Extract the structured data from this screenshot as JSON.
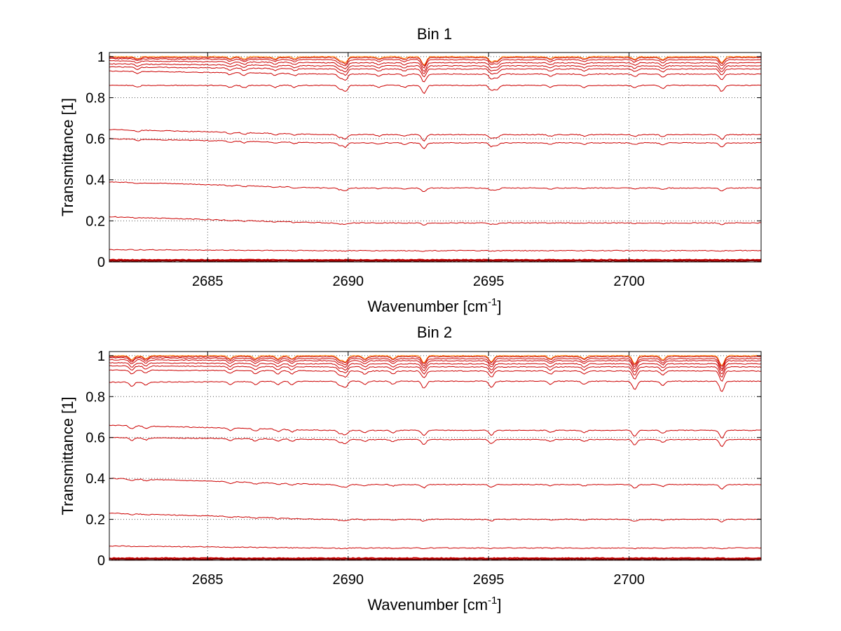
{
  "figure": {
    "background": "#ffffff"
  },
  "chart_data": [
    {
      "type": "line",
      "title": "Bin 1",
      "xlabel_main": "Wavenumber [cm",
      "xlabel_sup": "-1",
      "xlabel_end": "]",
      "ylabel": "Transmittance [1]",
      "xlim": [
        2681.5,
        2704.7
      ],
      "ylim": [
        0,
        1.02
      ],
      "xticks": [
        2685,
        2690,
        2695,
        2700
      ],
      "yticks": [
        0,
        0.2,
        0.4,
        0.6,
        0.8,
        1
      ],
      "ytick_labels": [
        "0",
        "0.2",
        "0.4",
        "0.6",
        "0.8",
        "1"
      ],
      "grid": true,
      "line_color": "#cc0000",
      "series": [
        {
          "start": 1.0,
          "end": 1.0
        },
        {
          "start": 0.995,
          "end": 0.995
        },
        {
          "start": 0.99,
          "end": 0.985
        },
        {
          "start": 0.98,
          "end": 0.97
        },
        {
          "start": 0.965,
          "end": 0.955
        },
        {
          "start": 0.95,
          "end": 0.94
        },
        {
          "start": 0.93,
          "end": 0.915
        },
        {
          "start": 0.86,
          "end": 0.86
        },
        {
          "start": 0.645,
          "end": 0.62
        },
        {
          "start": 0.6,
          "end": 0.58
        },
        {
          "start": 0.39,
          "end": 0.36
        },
        {
          "start": 0.22,
          "end": 0.19
        },
        {
          "start": 0.06,
          "end": 0.055
        },
        {
          "start": 0.01,
          "end": 0.01
        },
        {
          "start": 0.005,
          "end": 0.005
        }
      ],
      "absorption_lines": [
        {
          "x": 2682.5,
          "depth": 0.01
        },
        {
          "x": 2685.8,
          "depth": 0.01
        },
        {
          "x": 2686.3,
          "depth": 0.012
        },
        {
          "x": 2687.4,
          "depth": 0.01
        },
        {
          "x": 2688.1,
          "depth": 0.01
        },
        {
          "x": 2689.7,
          "depth": 0.018
        },
        {
          "x": 2689.9,
          "depth": 0.03
        },
        {
          "x": 2691.1,
          "depth": 0.01
        },
        {
          "x": 2692.0,
          "depth": 0.01
        },
        {
          "x": 2692.7,
          "depth": 0.04
        },
        {
          "x": 2695.1,
          "depth": 0.025
        },
        {
          "x": 2695.3,
          "depth": 0.02
        },
        {
          "x": 2697.2,
          "depth": 0.01
        },
        {
          "x": 2698.4,
          "depth": 0.01
        },
        {
          "x": 2700.2,
          "depth": 0.012
        },
        {
          "x": 2701.2,
          "depth": 0.015
        },
        {
          "x": 2703.3,
          "depth": 0.03
        }
      ]
    },
    {
      "type": "line",
      "title": "Bin 2",
      "xlabel_main": "Wavenumber [cm",
      "xlabel_sup": "-1",
      "xlabel_end": "]",
      "ylabel": "Transmittance [1]",
      "xlim": [
        2681.5,
        2704.7
      ],
      "ylim": [
        0,
        1.02
      ],
      "xticks": [
        2685,
        2690,
        2695,
        2700
      ],
      "yticks": [
        0,
        0.2,
        0.4,
        0.6,
        0.8,
        1
      ],
      "ytick_labels": [
        "0",
        "0.2",
        "0.4",
        "0.6",
        "0.8",
        "1"
      ],
      "grid": true,
      "line_color": "#cc0000",
      "series": [
        {
          "start": 1.0,
          "end": 1.0
        },
        {
          "start": 0.995,
          "end": 0.995
        },
        {
          "start": 0.99,
          "end": 0.985
        },
        {
          "start": 0.98,
          "end": 0.975
        },
        {
          "start": 0.965,
          "end": 0.96
        },
        {
          "start": 0.95,
          "end": 0.945
        },
        {
          "start": 0.93,
          "end": 0.925
        },
        {
          "start": 0.87,
          "end": 0.875
        },
        {
          "start": 0.66,
          "end": 0.635
        },
        {
          "start": 0.6,
          "end": 0.59
        },
        {
          "start": 0.4,
          "end": 0.37
        },
        {
          "start": 0.23,
          "end": 0.2
        },
        {
          "start": 0.07,
          "end": 0.06
        },
        {
          "start": 0.01,
          "end": 0.01
        },
        {
          "start": 0.005,
          "end": 0.005
        }
      ],
      "absorption_lines": [
        {
          "x": 2682.3,
          "depth": 0.02
        },
        {
          "x": 2682.8,
          "depth": 0.015
        },
        {
          "x": 2685.8,
          "depth": 0.015
        },
        {
          "x": 2686.7,
          "depth": 0.015
        },
        {
          "x": 2687.5,
          "depth": 0.015
        },
        {
          "x": 2688.0,
          "depth": 0.015
        },
        {
          "x": 2689.7,
          "depth": 0.02
        },
        {
          "x": 2689.9,
          "depth": 0.03
        },
        {
          "x": 2690.6,
          "depth": 0.015
        },
        {
          "x": 2691.6,
          "depth": 0.015
        },
        {
          "x": 2692.7,
          "depth": 0.035
        },
        {
          "x": 2695.1,
          "depth": 0.03
        },
        {
          "x": 2697.2,
          "depth": 0.015
        },
        {
          "x": 2698.4,
          "depth": 0.015
        },
        {
          "x": 2700.2,
          "depth": 0.04
        },
        {
          "x": 2701.2,
          "depth": 0.02
        },
        {
          "x": 2703.3,
          "depth": 0.05
        }
      ]
    }
  ]
}
